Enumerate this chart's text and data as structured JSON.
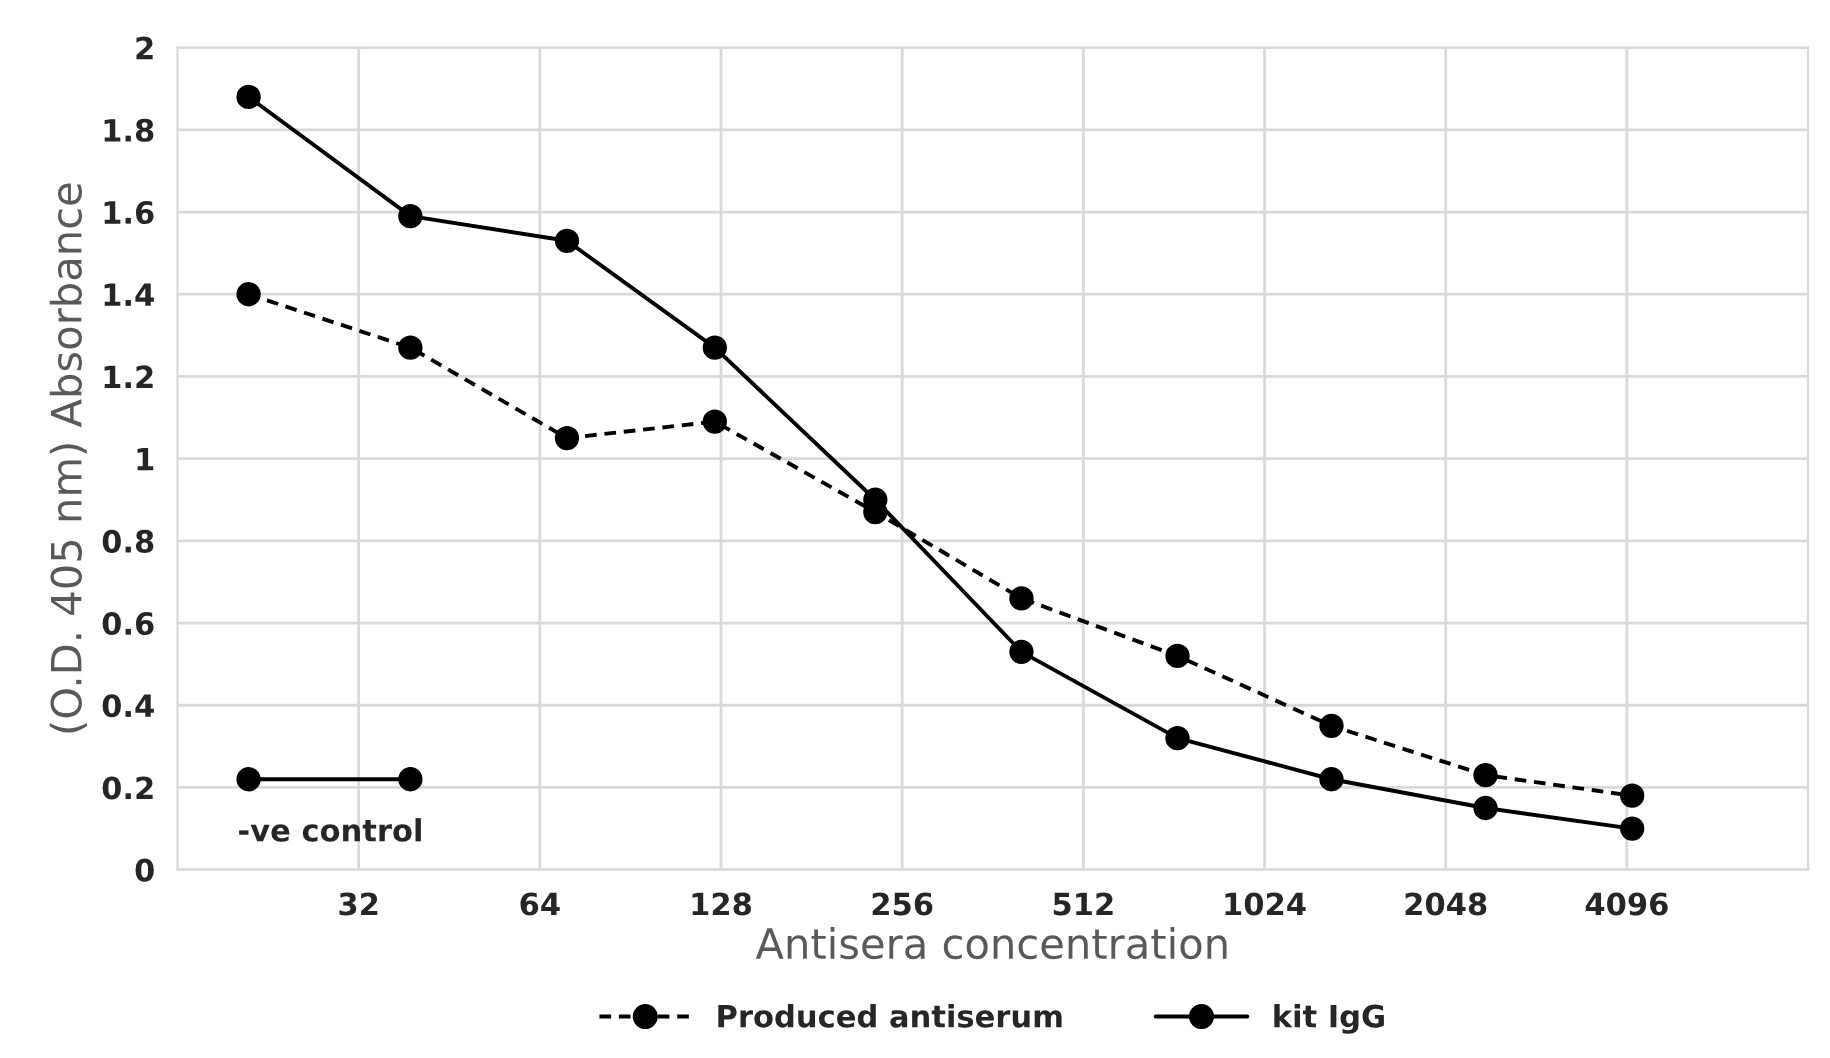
{
  "chart_data": {
    "type": "line",
    "xlabel": "Antisera concentration",
    "ylabel": "(O.D. 405 nm) Absorbance",
    "log": "x",
    "xlim": [
      16,
      8192
    ],
    "xticks": [
      32,
      64,
      128,
      256,
      512,
      1024,
      2048,
      4096
    ],
    "ylim": [
      0,
      2
    ],
    "yticks": [
      0,
      0.2,
      0.4,
      0.6,
      0.8,
      1,
      1.2,
      1.4,
      1.6,
      1.8,
      2
    ],
    "grid": true,
    "legend": "bottom",
    "marker": "circle",
    "series": [
      {
        "name": "Produced antiserum",
        "color": "#000000",
        "line_style": "dashed",
        "x": [
          21,
          39,
          71,
          125,
          231,
          404,
          734,
          1323,
          2385,
          4180
        ],
        "values": [
          1.4,
          1.27,
          1.05,
          1.09,
          0.87,
          0.66,
          0.52,
          0.35,
          0.23,
          0.18
        ]
      },
      {
        "name": "kit IgG",
        "color": "#000000",
        "line_style": "solid",
        "x": [
          21,
          39,
          71,
          125,
          231,
          404,
          734,
          1323,
          2385,
          4180
        ],
        "values": [
          1.88,
          1.59,
          1.53,
          1.27,
          0.9,
          0.53,
          0.32,
          0.22,
          0.15,
          0.1
        ]
      },
      {
        "color": "#000000",
        "line_style": "solid",
        "x": [
          21,
          39
        ],
        "values": [
          0.22,
          0.22
        ]
      }
    ],
    "annotations": [
      {
        "text": "-ve control",
        "x": 21,
        "y": 0.22
      }
    ]
  }
}
